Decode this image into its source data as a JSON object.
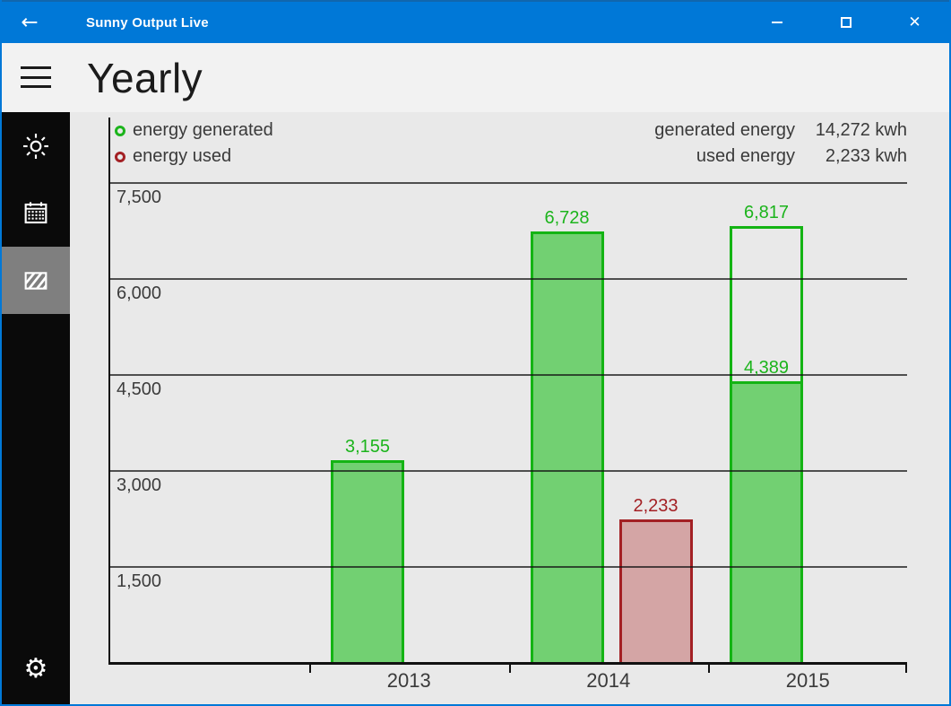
{
  "window": {
    "title": "Sunny Output Live",
    "controls": [
      "minimize",
      "maximize",
      "close"
    ],
    "accent_color": "#0078d7"
  },
  "header": {
    "title": "Yearly"
  },
  "sidebar": {
    "items": [
      {
        "icon": "sun-icon",
        "selected": false
      },
      {
        "icon": "calendar-icon",
        "selected": false
      },
      {
        "icon": "solar-panel-icon",
        "selected": true
      },
      {
        "icon": "gear-icon",
        "selected": false
      }
    ],
    "selected_bg": "#7f7f7f"
  },
  "legend": {
    "items": [
      {
        "label": "energy generated",
        "color": "#1cb41c"
      },
      {
        "label": "energy used",
        "color": "#a32024"
      }
    ]
  },
  "totals": [
    {
      "label": "generated energy",
      "value": "14,272 kwh"
    },
    {
      "label": "used energy",
      "value": "2,233 kwh"
    }
  ],
  "chart_data": {
    "type": "bar",
    "categories": [
      "2013",
      "2014",
      "2015"
    ],
    "series": [
      {
        "name": "energy generated",
        "values": [
          3155,
          6728,
          4389
        ],
        "fill": "#72d072",
        "border": "#14b414",
        "label_color": "#1cb41c"
      },
      {
        "name": "energy used",
        "values": [
          null,
          2233,
          null
        ],
        "fill": "#d4a5a5",
        "border": "#a32024",
        "label_color": "#a32024"
      },
      {
        "name": "energy generated outline",
        "values": [
          null,
          null,
          6817
        ],
        "fill": "transparent",
        "border": "#14b414",
        "label_color": "#1cb41c"
      }
    ],
    "title": "Yearly",
    "xlabel": "",
    "ylabel": "",
    "ylim": [
      0,
      7500
    ],
    "yticks": [
      1500,
      3000,
      4500,
      6000,
      7500
    ],
    "grid": true,
    "legend_position": "top-left"
  }
}
